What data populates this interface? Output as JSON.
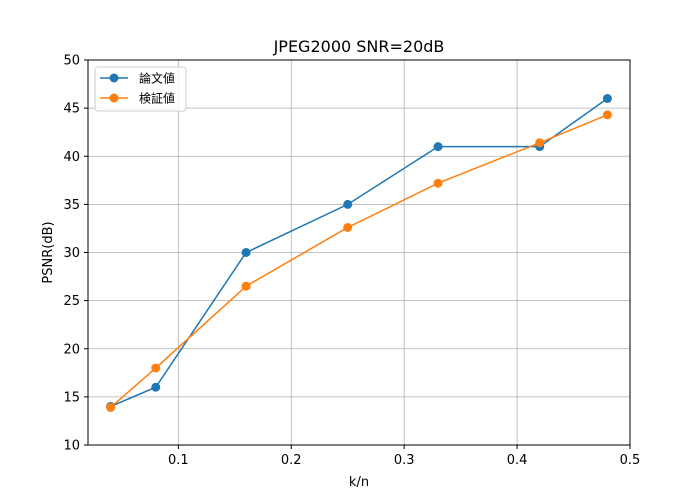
{
  "chart_data": {
    "type": "line",
    "title": "JPEG2000 SNR=20dB",
    "xlabel": "k/n",
    "ylabel": "PSNR(dB)",
    "xlim": [
      0.02,
      0.5
    ],
    "ylim": [
      10,
      50
    ],
    "xticks": [
      0.1,
      0.2,
      0.3,
      0.4,
      0.5
    ],
    "xtick_labels": [
      "0.1",
      "0.2",
      "0.3",
      "0.4",
      "0.5"
    ],
    "yticks": [
      10,
      15,
      20,
      25,
      30,
      35,
      40,
      45,
      50
    ],
    "ytick_labels": [
      "10",
      "15",
      "20",
      "25",
      "30",
      "35",
      "40",
      "45",
      "50"
    ],
    "grid": true,
    "legend_position": "top-left",
    "series": [
      {
        "name": "論文値",
        "color": "#1f77b4",
        "x": [
          0.04,
          0.08,
          0.16,
          0.25,
          0.33,
          0.42,
          0.48
        ],
        "y": [
          14,
          16,
          30,
          35,
          41,
          41,
          46
        ]
      },
      {
        "name": "検証値",
        "color": "#ff7f0e",
        "x": [
          0.04,
          0.08,
          0.16,
          0.25,
          0.33,
          0.42,
          0.48
        ],
        "y": [
          13.9,
          18,
          26.5,
          32.6,
          37.2,
          41.4,
          44.3
        ]
      }
    ]
  }
}
